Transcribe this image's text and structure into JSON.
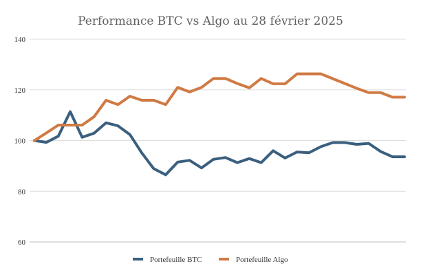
{
  "chart_data": {
    "type": "line",
    "title": "Performance BTC vs Algo au 28 février 2025",
    "ylim": [
      60,
      140
    ],
    "yticks": [
      "60",
      "80",
      "100",
      "120",
      "140"
    ],
    "grid": true,
    "legend_position": "bottom",
    "x": [
      0,
      1,
      2,
      3,
      4,
      5,
      6,
      7,
      8,
      9,
      10,
      11,
      12,
      13,
      14,
      15,
      16,
      17,
      18,
      19,
      20,
      21,
      22,
      23,
      24,
      25,
      26,
      27,
      28,
      29,
      30,
      31
    ],
    "series": [
      {
        "name": "Portefeuille BTC",
        "color": "#3b5f7e",
        "values": [
          100.0,
          99.3,
          101.7,
          111.4,
          101.3,
          102.9,
          107.0,
          105.8,
          102.4,
          95.1,
          88.9,
          86.5,
          91.5,
          92.2,
          89.2,
          92.6,
          93.3,
          91.3,
          92.9,
          91.3,
          96.0,
          93.1,
          95.5,
          95.2,
          97.6,
          99.2,
          99.2,
          98.5,
          98.9,
          95.7,
          93.6,
          93.6
        ]
      },
      {
        "name": "Portefeuille Algo",
        "color": "#d07a44",
        "values": [
          100.0,
          103.0,
          106.1,
          106.1,
          106.1,
          109.4,
          115.9,
          114.2,
          117.5,
          115.9,
          115.9,
          114.2,
          121.0,
          119.2,
          121.0,
          124.5,
          124.5,
          122.5,
          120.8,
          124.5,
          122.4,
          122.4,
          126.3,
          126.3,
          126.3,
          124.4,
          122.5,
          120.6,
          118.9,
          118.9,
          117.1,
          117.1
        ]
      }
    ]
  }
}
